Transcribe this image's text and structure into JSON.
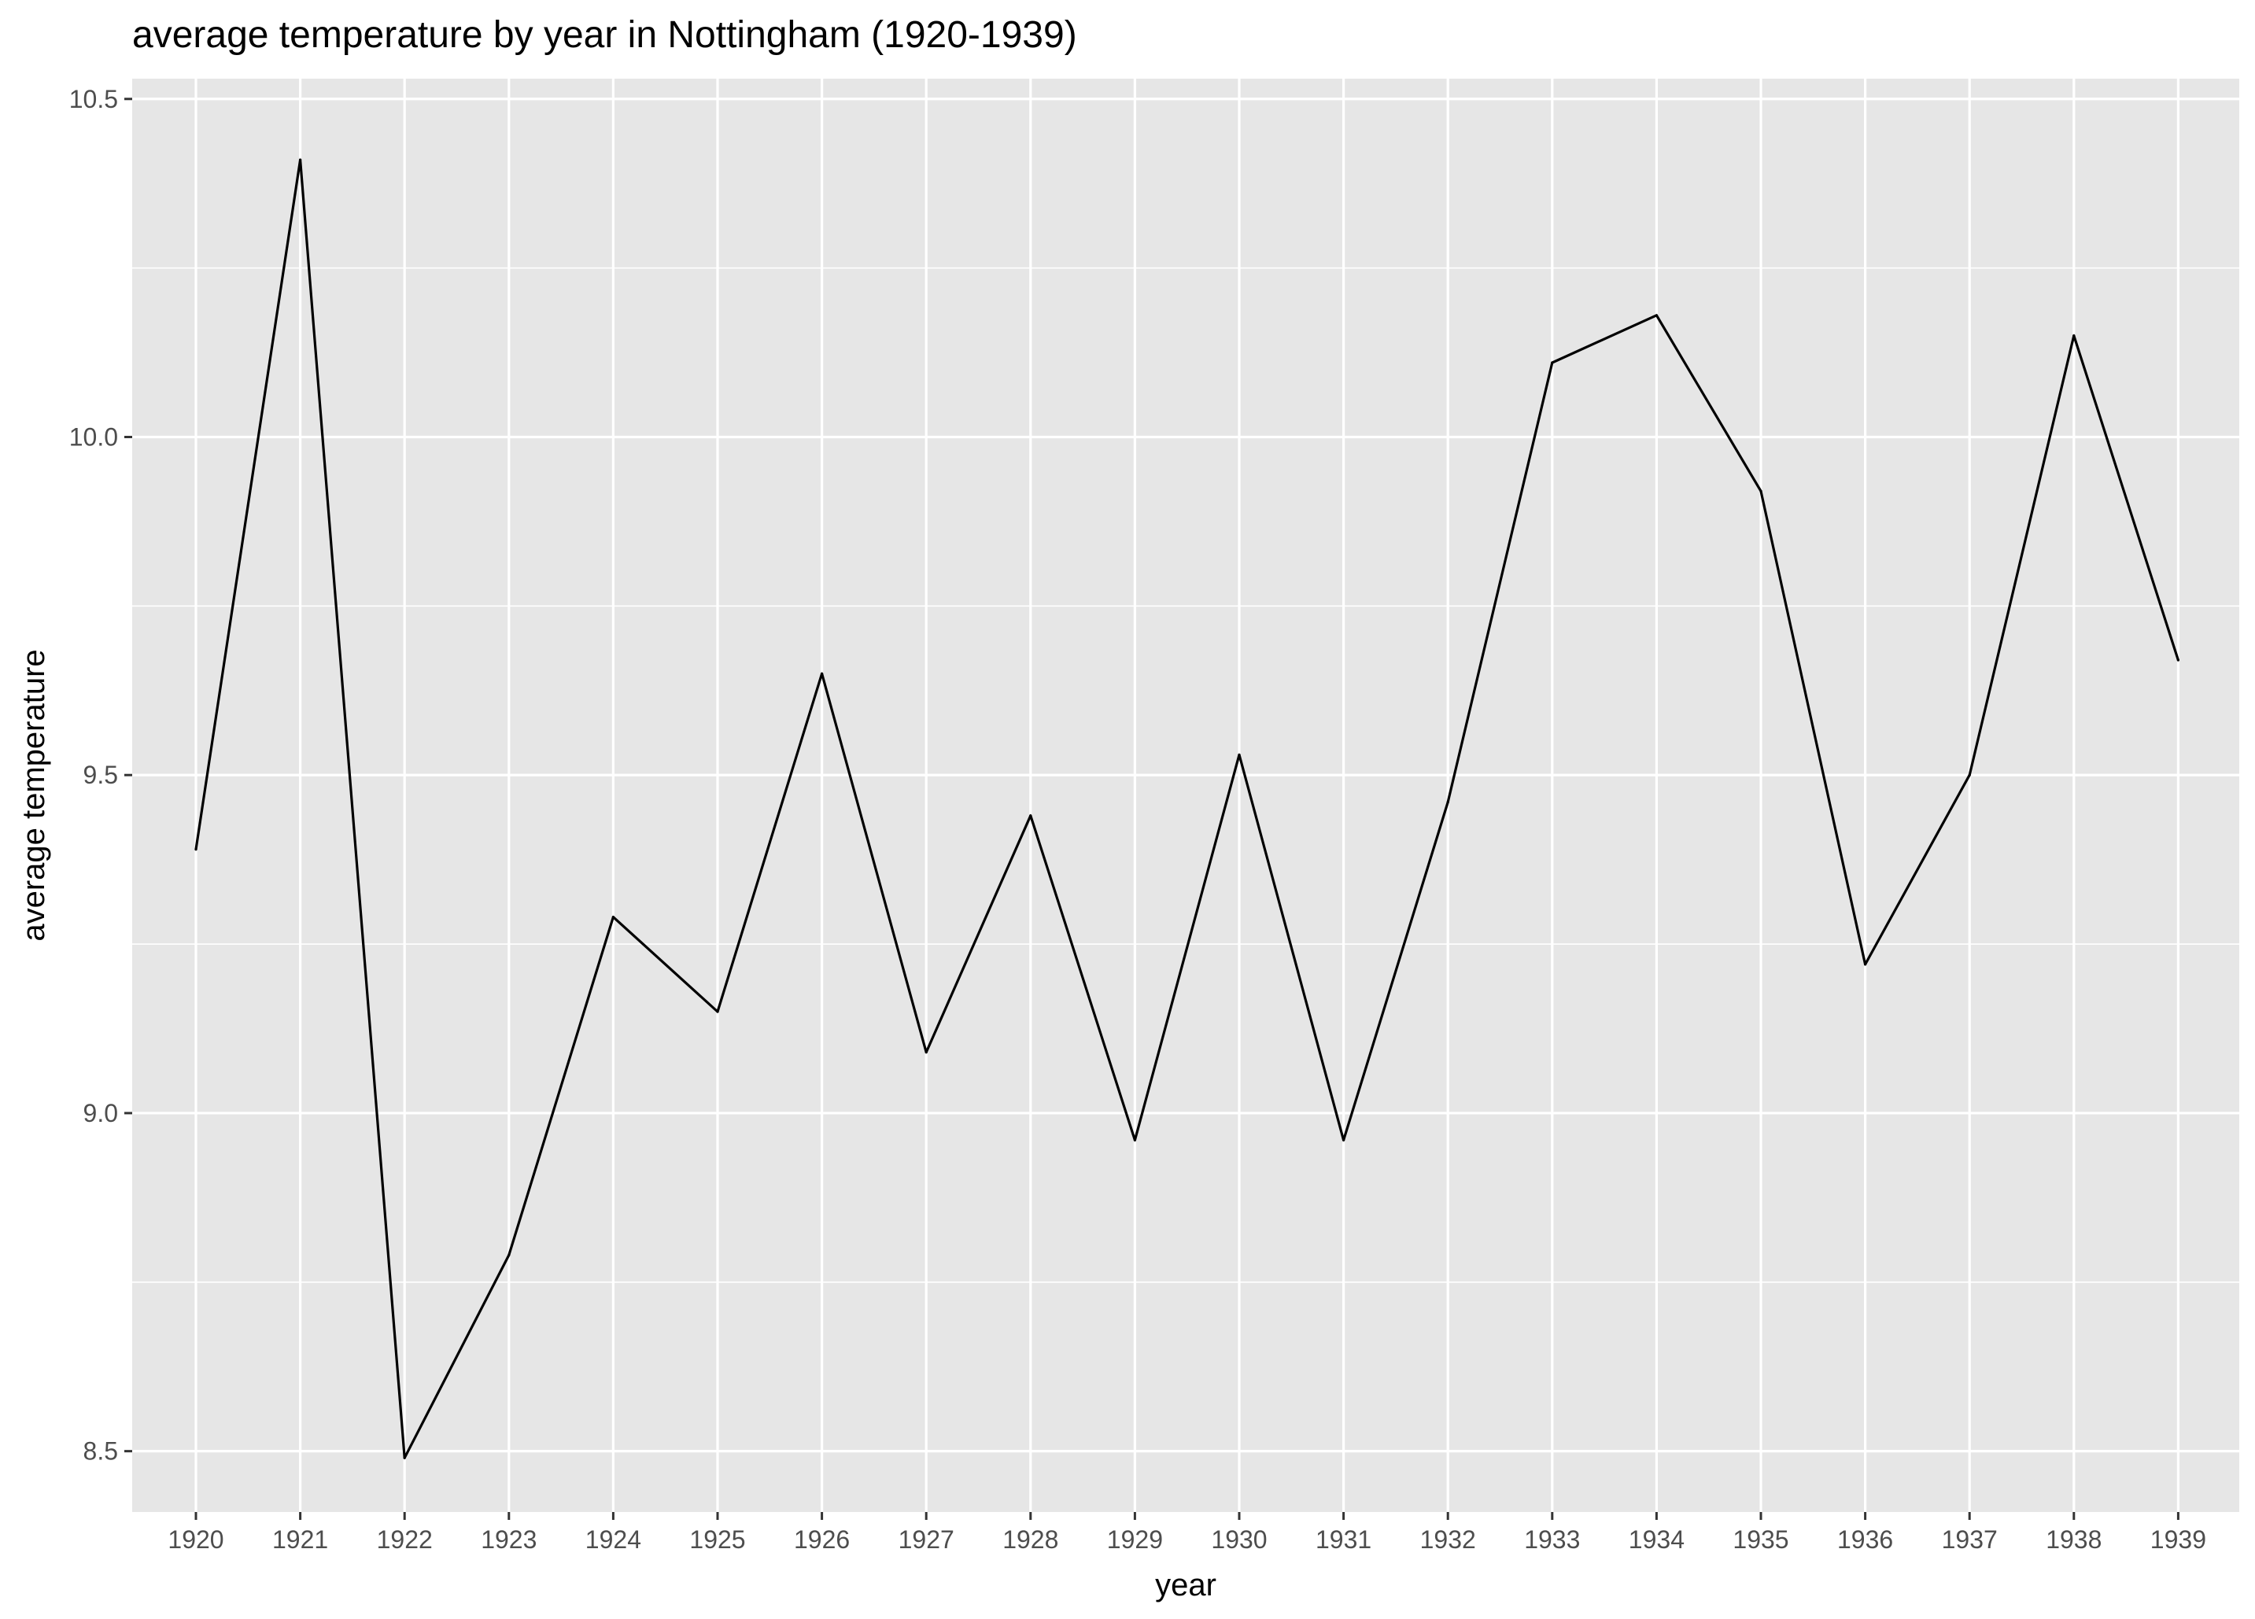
{
  "chart_data": {
    "type": "line",
    "title": "average temperature by year in Nottingham (1920-1939)",
    "xlabel": "year",
    "ylabel": "average temperature",
    "x": [
      "1920",
      "1921",
      "1922",
      "1923",
      "1924",
      "1925",
      "1926",
      "1927",
      "1928",
      "1929",
      "1930",
      "1931",
      "1932",
      "1933",
      "1934",
      "1935",
      "1936",
      "1937",
      "1938",
      "1939"
    ],
    "series": [
      {
        "values": [
          9.39,
          10.41,
          8.49,
          8.79,
          9.29,
          9.15,
          9.65,
          9.09,
          9.44,
          8.96,
          9.53,
          8.96,
          9.46,
          10.11,
          10.18,
          9.92,
          9.22,
          9.5,
          10.15,
          9.67
        ]
      }
    ],
    "ylim": [
      8.41,
      10.53
    ],
    "yticks": [
      8.5,
      9.0,
      9.5,
      10.0,
      10.5
    ],
    "ytick_labels": [
      "8.5",
      "9.0",
      "9.5",
      "10.0",
      "10.5"
    ],
    "grid": true,
    "legend": "none",
    "colors": {
      "panel": "#e6e6e6",
      "grid": "#ffffff",
      "line": "#000000"
    }
  }
}
